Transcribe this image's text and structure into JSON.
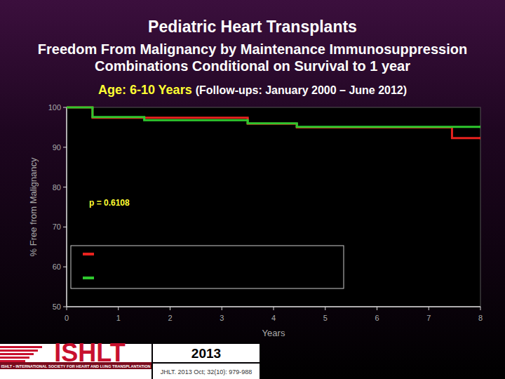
{
  "chart_data": {
    "type": "line",
    "line_style": "step",
    "title": "Pediatric Heart Transplants",
    "subtitle": [
      "Freedom From Malignancy by Maintenance Immunosuppression",
      "Combinations Conditional on Survival to 1 year"
    ],
    "age_label": "Age: 6-10 Years",
    "follow_up": "(Follow-ups: January 2000 – June 2012)",
    "xlabel": "Years",
    "ylabel": "% Free from Malignancy",
    "annotations": [
      "p = 0.6108"
    ],
    "xlim": [
      0,
      8
    ],
    "xticks": [
      0,
      1,
      2,
      3,
      4,
      5,
      6,
      7,
      8
    ],
    "ylim": [
      50,
      100
    ],
    "yticks": [
      50,
      60,
      70,
      80,
      90,
      100
    ],
    "grid": false,
    "legend": "lower left",
    "series": [
      {
        "color": "#e8221e",
        "x": [
          0,
          0.5,
          3.5,
          4.45,
          7.45,
          8
        ],
        "values": [
          100,
          97.4,
          95.9,
          95,
          92.3,
          92.3
        ]
      },
      {
        "color": "#2ec82e",
        "x": [
          0,
          0.5,
          1.5,
          3.5,
          4.45,
          8
        ],
        "values": [
          100,
          97.6,
          96.8,
          96,
          95.1,
          95.1
        ]
      }
    ],
    "source": {
      "logo": "ISHLT",
      "society": "ISHLT • INTERNATIONAL SOCIETY FOR HEART AND LUNG TRANSPLANTATION",
      "year": "2013",
      "citation": "JHLT. 2013 Oct; 32(10): 979-988"
    }
  }
}
